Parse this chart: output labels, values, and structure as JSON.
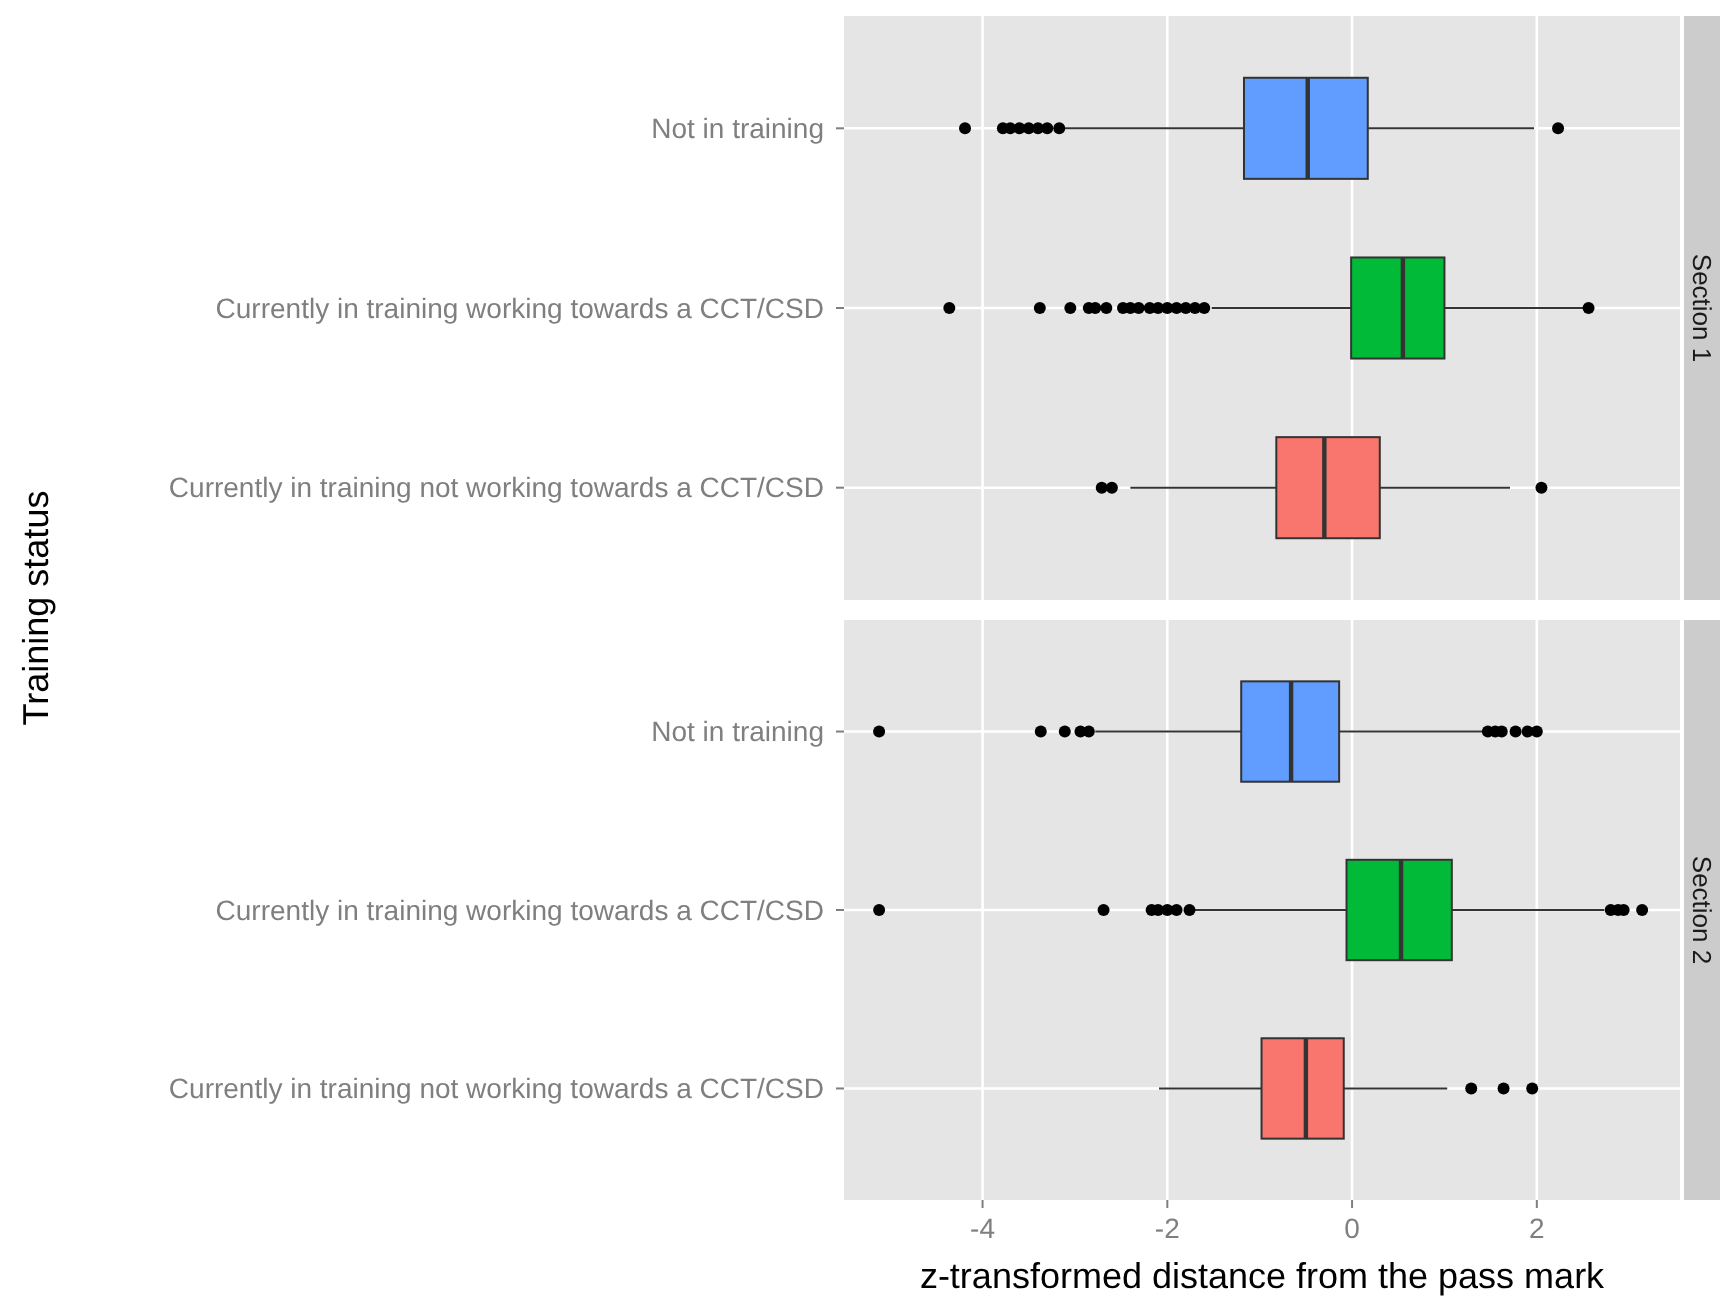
{
  "chart_data": [
    {
      "type": "box",
      "orientation": "horizontal",
      "title": "Section 1",
      "ylabel": "Training status",
      "categories": [
        "Not in training",
        "Currently in training working towards a CCT/CSD",
        "Currently in training not working towards a CCT/CSD"
      ],
      "colors": [
        "#619cff",
        "#00ba38",
        "#f8766d"
      ],
      "boxes": [
        {
          "low": -3.13,
          "q1": -1.17,
          "median": -0.48,
          "q3": 0.17,
          "high": 1.97,
          "outliers": [
            -4.19,
            -3.78,
            -3.7,
            -3.6,
            -3.5,
            -3.4,
            -3.3,
            -3.17,
            2.23
          ]
        },
        {
          "low": -1.52,
          "q1": -0.01,
          "median": 0.55,
          "q3": 1.0,
          "high": 2.5,
          "outliers": [
            -4.36,
            -3.38,
            -3.05,
            -2.85,
            -2.78,
            -2.66,
            -2.48,
            -2.4,
            -2.31,
            -2.19,
            -2.1,
            -2.0,
            -1.9,
            -1.8,
            -1.7,
            -1.6,
            2.56
          ]
        },
        {
          "low": -2.4,
          "q1": -0.82,
          "median": -0.3,
          "q3": 0.3,
          "high": 1.71,
          "outliers": [
            -2.71,
            -2.6,
            2.05
          ]
        }
      ],
      "xlim": [
        -5.5,
        3.55
      ],
      "xticks": [
        -4,
        -2,
        0,
        2
      ],
      "grid": true,
      "tick_labels": "y"
    },
    {
      "type": "box",
      "orientation": "horizontal",
      "title": "Section 2",
      "xlabel": "z-transformed distance from the pass mark",
      "categories": [
        "Not in training",
        "Currently in training working towards a CCT/CSD",
        "Currently in training not working towards a CCT/CSD"
      ],
      "colors": [
        "#619cff",
        "#00ba38",
        "#f8766d"
      ],
      "boxes": [
        {
          "low": -2.78,
          "q1": -1.2,
          "median": -0.66,
          "q3": -0.14,
          "high": 1.43,
          "outliers": [
            -5.12,
            -3.37,
            -3.11,
            -2.94,
            -2.85,
            1.47,
            1.55,
            1.62,
            1.77,
            1.9,
            2.0
          ]
        },
        {
          "low": -1.71,
          "q1": -0.06,
          "median": 0.53,
          "q3": 1.08,
          "high": 2.73,
          "outliers": [
            -5.12,
            -2.69,
            -2.17,
            -2.1,
            -2.0,
            -1.9,
            -1.76,
            2.8,
            2.88,
            2.94,
            3.14
          ]
        },
        {
          "low": -2.09,
          "q1": -0.98,
          "median": -0.5,
          "q3": -0.09,
          "high": 1.03,
          "outliers": [
            1.29,
            1.64,
            1.95
          ]
        }
      ],
      "xlim": [
        -5.5,
        3.55
      ],
      "xticks": [
        -4,
        -2,
        0,
        2
      ],
      "grid": true
    }
  ]
}
